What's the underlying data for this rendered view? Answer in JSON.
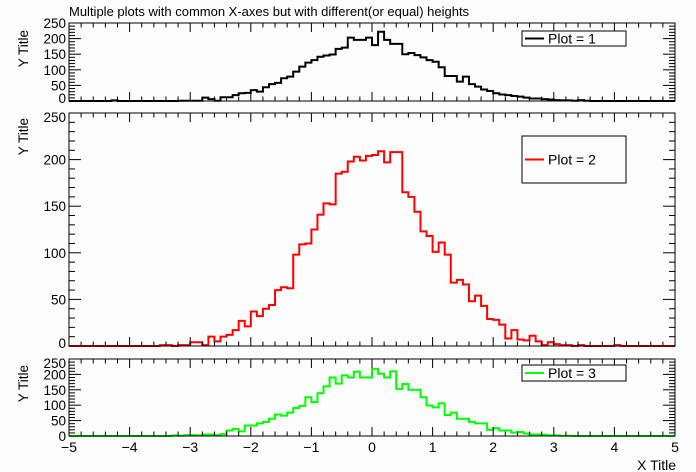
{
  "title": "Multiple plots with common X-axes but with different(or equal) heights",
  "chart_data": [
    {
      "type": "histogram-step",
      "legend": "Plot = 1",
      "legend_placement": "top-right",
      "color": "#000000",
      "ylabel": "Y Title",
      "xlim": [
        -5,
        5
      ],
      "ylim": [
        0,
        250
      ],
      "yticks": [
        0,
        50,
        100,
        150,
        200,
        250
      ],
      "bin_width": 0.1,
      "values": [
        0,
        0,
        0,
        0,
        0,
        0,
        0,
        2,
        0,
        0,
        0,
        0,
        0,
        0,
        0,
        0,
        0,
        0,
        1,
        1,
        1,
        1,
        11,
        6,
        1,
        12,
        12,
        19,
        25,
        26,
        35,
        30,
        44,
        54,
        58,
        73,
        78,
        94,
        110,
        123,
        131,
        142,
        146,
        149,
        167,
        171,
        203,
        196,
        196,
        203,
        179,
        222,
        196,
        183,
        183,
        150,
        154,
        147,
        140,
        131,
        126,
        108,
        80,
        80,
        62,
        78,
        54,
        46,
        37,
        32,
        25,
        21,
        19,
        16,
        14,
        11,
        8,
        8,
        6,
        5,
        3,
        2,
        2,
        1,
        3,
        1,
        0,
        0,
        0,
        0,
        0,
        0,
        0,
        0,
        0,
        0,
        0,
        0,
        0,
        0
      ]
    },
    {
      "type": "histogram-step",
      "legend": "Plot = 2",
      "legend_placement": "top-right",
      "color": "#ff0000",
      "ylabel": "Y Title",
      "xlim": [
        -5,
        5
      ],
      "ylim": [
        0,
        250
      ],
      "yticks": [
        0,
        50,
        100,
        150,
        200,
        250
      ],
      "bin_width": 0.1,
      "values": [
        0,
        0,
        0,
        0,
        0,
        0,
        0,
        0,
        0,
        0,
        0,
        0,
        0,
        0,
        0,
        1,
        1,
        0,
        1,
        1,
        4,
        4,
        1,
        10,
        5,
        10,
        12,
        17,
        27,
        21,
        37,
        32,
        40,
        44,
        60,
        63,
        62,
        98,
        109,
        110,
        125,
        141,
        153,
        152,
        185,
        187,
        198,
        203,
        199,
        204,
        205,
        209,
        197,
        208,
        208,
        165,
        160,
        144,
        123,
        118,
        101,
        111,
        98,
        68,
        71,
        66,
        48,
        54,
        43,
        29,
        28,
        23,
        8,
        17,
        7,
        6,
        11,
        5,
        1,
        4,
        2,
        1,
        1,
        0,
        1,
        0,
        0,
        0,
        0,
        0,
        1,
        0,
        0,
        0,
        0,
        0,
        0,
        0,
        0,
        0
      ]
    },
    {
      "type": "histogram-step",
      "legend": "Plot = 3",
      "legend_placement": "top-right",
      "color": "#00ff00",
      "ylabel": "Y Title",
      "xlabel": "X Title",
      "xlim": [
        -5,
        5
      ],
      "ylim": [
        0,
        250
      ],
      "xticks": [
        -5,
        -4,
        -3,
        -2,
        -1,
        0,
        1,
        2,
        3,
        4,
        5
      ],
      "yticks": [
        0,
        50,
        100,
        150,
        200,
        250
      ],
      "bin_width": 0.1,
      "values": [
        0,
        0,
        0,
        0,
        0,
        0,
        0,
        0,
        0,
        0,
        0,
        0,
        0,
        0,
        0,
        0,
        0,
        2,
        1,
        3,
        3,
        2,
        5,
        5,
        3,
        6,
        18,
        23,
        15,
        34,
        34,
        41,
        46,
        56,
        70,
        66,
        76,
        91,
        98,
        126,
        110,
        139,
        161,
        190,
        170,
        197,
        190,
        209,
        190,
        190,
        218,
        202,
        190,
        210,
        153,
        169,
        150,
        150,
        126,
        99,
        93,
        106,
        68,
        76,
        56,
        56,
        46,
        41,
        41,
        20,
        25,
        18,
        18,
        11,
        13,
        8,
        5,
        5,
        4,
        2,
        2,
        1,
        1,
        0,
        0,
        0,
        0,
        0,
        0,
        0,
        0,
        0,
        0,
        0,
        0,
        0,
        0,
        0,
        0,
        0
      ]
    }
  ]
}
